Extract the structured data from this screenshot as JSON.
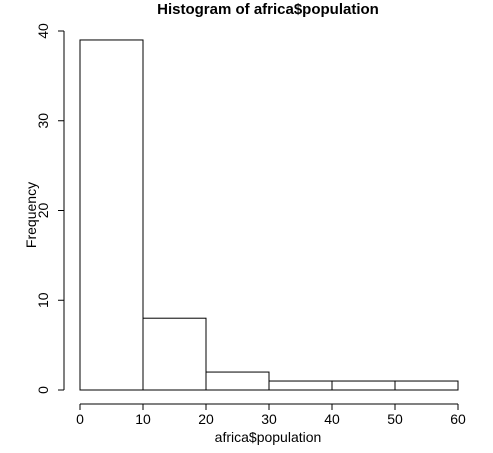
{
  "chart_data": {
    "type": "bar",
    "title": "Histogram of africa$population",
    "xlabel": "africa$population",
    "ylabel": "Frequency",
    "bins": [
      {
        "start": 0,
        "end": 10,
        "count": 39
      },
      {
        "start": 10,
        "end": 20,
        "count": 8
      },
      {
        "start": 20,
        "end": 30,
        "count": 2
      },
      {
        "start": 30,
        "end": 40,
        "count": 1
      },
      {
        "start": 40,
        "end": 50,
        "count": 1
      },
      {
        "start": 50,
        "end": 60,
        "count": 1
      }
    ],
    "xlim": [
      0,
      60
    ],
    "ylim": [
      0,
      40
    ],
    "xticks": [
      0,
      10,
      20,
      30,
      40,
      50,
      60
    ],
    "yticks": [
      0,
      10,
      20,
      30,
      40
    ],
    "grid": false,
    "bar_fill": "#ffffff",
    "bar_stroke": "#000000"
  }
}
